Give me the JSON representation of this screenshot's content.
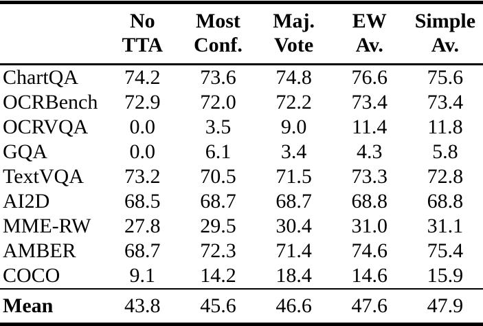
{
  "colors": {
    "text": "#000000",
    "background": "#ffffff",
    "rule": "#000000"
  },
  "table": {
    "columns": [
      {
        "line1": "No",
        "line2": "TTA"
      },
      {
        "line1": "Most",
        "line2": "Conf."
      },
      {
        "line1": "Maj.",
        "line2": "Vote"
      },
      {
        "line1": "EW",
        "line2": "Av."
      },
      {
        "line1": "Simple",
        "line2": "Av."
      }
    ],
    "rows": [
      {
        "label": "ChartQA",
        "values": [
          "74.2",
          "73.6",
          "74.8",
          "76.6",
          "75.6"
        ]
      },
      {
        "label": "OCRBench",
        "values": [
          "72.9",
          "72.0",
          "72.2",
          "73.4",
          "73.4"
        ]
      },
      {
        "label": "OCRVQA",
        "values": [
          "0.0",
          "3.5",
          "9.0",
          "11.4",
          "11.8"
        ]
      },
      {
        "label": "GQA",
        "values": [
          "0.0",
          "6.1",
          "3.4",
          "4.3",
          "5.8"
        ]
      },
      {
        "label": "TextVQA",
        "values": [
          "73.2",
          "70.5",
          "71.5",
          "73.3",
          "72.8"
        ]
      },
      {
        "label": "AI2D",
        "values": [
          "68.5",
          "68.7",
          "68.7",
          "68.8",
          "68.8"
        ]
      },
      {
        "label": "MME-RW",
        "values": [
          "27.8",
          "29.5",
          "30.4",
          "31.0",
          "31.1"
        ]
      },
      {
        "label": "AMBER",
        "values": [
          "68.7",
          "72.3",
          "71.4",
          "74.6",
          "75.4"
        ]
      },
      {
        "label": "COCO",
        "values": [
          "9.1",
          "14.2",
          "18.4",
          "14.6",
          "15.9"
        ]
      }
    ],
    "mean_row": {
      "label": "Mean",
      "values": [
        "43.8",
        "45.6",
        "46.6",
        "47.6",
        "47.9"
      ]
    }
  },
  "chart_data": {
    "type": "table",
    "columns": [
      "No TTA",
      "Most Conf.",
      "Maj. Vote",
      "EW Av.",
      "Simple Av."
    ],
    "rows": [
      {
        "label": "ChartQA",
        "values": [
          74.2,
          73.6,
          74.8,
          76.6,
          75.6
        ]
      },
      {
        "label": "OCRBench",
        "values": [
          72.9,
          72.0,
          72.2,
          73.4,
          73.4
        ]
      },
      {
        "label": "OCRVQA",
        "values": [
          0.0,
          3.5,
          9.0,
          11.4,
          11.8
        ]
      },
      {
        "label": "GQA",
        "values": [
          0.0,
          6.1,
          3.4,
          4.3,
          5.8
        ]
      },
      {
        "label": "TextVQA",
        "values": [
          73.2,
          70.5,
          71.5,
          73.3,
          72.8
        ]
      },
      {
        "label": "AI2D",
        "values": [
          68.5,
          68.7,
          68.7,
          68.8,
          68.8
        ]
      },
      {
        "label": "MME-RW",
        "values": [
          27.8,
          29.5,
          30.4,
          31.0,
          31.1
        ]
      },
      {
        "label": "AMBER",
        "values": [
          68.7,
          72.3,
          71.4,
          74.6,
          75.4
        ]
      },
      {
        "label": "COCO",
        "values": [
          9.1,
          14.2,
          18.4,
          14.6,
          15.9
        ]
      },
      {
        "label": "Mean",
        "values": [
          43.8,
          45.6,
          46.6,
          47.6,
          47.9
        ]
      }
    ]
  }
}
